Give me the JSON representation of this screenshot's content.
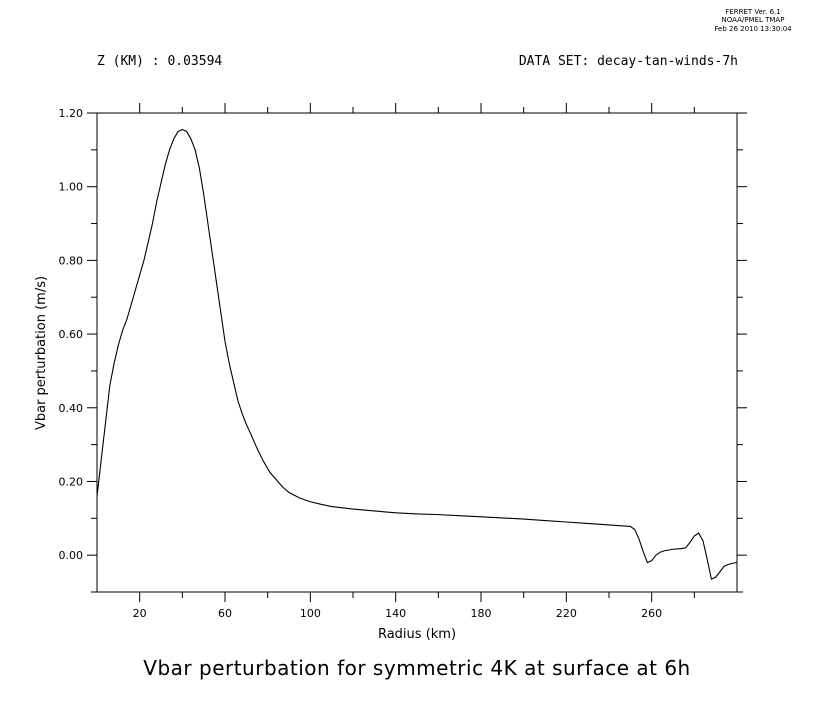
{
  "header": {
    "ferret_version": "FERRET Ver. 6.1",
    "ferret_org": "NOAA/PMEL TMAP",
    "ferret_date": "Feb 26 2010 13:30:04",
    "z_label": "Z (KM) : 0.03594",
    "dataset_label": "DATA SET: decay-tan-winds-7h"
  },
  "chart_data": {
    "type": "line",
    "title": "Vbar perturbation for symmetric 4K at surface at 6h",
    "xlabel": "Radius (km)",
    "ylabel": "Vbar perturbation (m/s)",
    "xlim": [
      0,
      300
    ],
    "ylim": [
      -0.1,
      1.2
    ],
    "x_ticks": [
      20,
      60,
      100,
      140,
      180,
      220,
      260
    ],
    "x_tick_labels": [
      "20",
      "60",
      "100",
      "140",
      "180",
      "220",
      "260"
    ],
    "y_ticks": [
      0.0,
      0.2,
      0.4,
      0.6,
      0.8,
      1.0,
      1.2
    ],
    "y_tick_labels": [
      "0.00",
      "0.20",
      "0.40",
      "0.60",
      "0.80",
      "1.00",
      "1.20"
    ],
    "grid": false,
    "series": [
      {
        "x": [
          0,
          2,
          4,
          6,
          8,
          10,
          12,
          14,
          16,
          18,
          20,
          22,
          24,
          26,
          28,
          30,
          32,
          34,
          36,
          38,
          40,
          42,
          44,
          46,
          48,
          50,
          52,
          54,
          56,
          58,
          60,
          62,
          64,
          66,
          68,
          70,
          72,
          75,
          78,
          81,
          84,
          87,
          90,
          95,
          100,
          105,
          110,
          120,
          130,
          140,
          150,
          160,
          170,
          180,
          190,
          200,
          210,
          220,
          230,
          240,
          245,
          250,
          252,
          254,
          256,
          258,
          260,
          262,
          264,
          266,
          268,
          270,
          272,
          274,
          276,
          278,
          280,
          282,
          284,
          286,
          288,
          290,
          292,
          294,
          296,
          298,
          300
        ],
        "y": [
          0.16,
          0.26,
          0.36,
          0.46,
          0.52,
          0.57,
          0.61,
          0.64,
          0.68,
          0.72,
          0.76,
          0.8,
          0.85,
          0.9,
          0.96,
          1.01,
          1.06,
          1.1,
          1.13,
          1.15,
          1.155,
          1.15,
          1.13,
          1.1,
          1.05,
          0.98,
          0.9,
          0.82,
          0.74,
          0.66,
          0.58,
          0.52,
          0.47,
          0.42,
          0.385,
          0.355,
          0.33,
          0.29,
          0.255,
          0.225,
          0.205,
          0.185,
          0.17,
          0.155,
          0.145,
          0.138,
          0.132,
          0.125,
          0.12,
          0.115,
          0.112,
          0.11,
          0.107,
          0.104,
          0.101,
          0.098,
          0.094,
          0.09,
          0.086,
          0.082,
          0.08,
          0.078,
          0.07,
          0.045,
          0.01,
          -0.02,
          -0.015,
          0.0,
          0.008,
          0.012,
          0.014,
          0.016,
          0.017,
          0.018,
          0.02,
          0.035,
          0.052,
          0.06,
          0.04,
          -0.01,
          -0.065,
          -0.06,
          -0.045,
          -0.03,
          -0.025,
          -0.022,
          -0.02
        ]
      }
    ]
  }
}
